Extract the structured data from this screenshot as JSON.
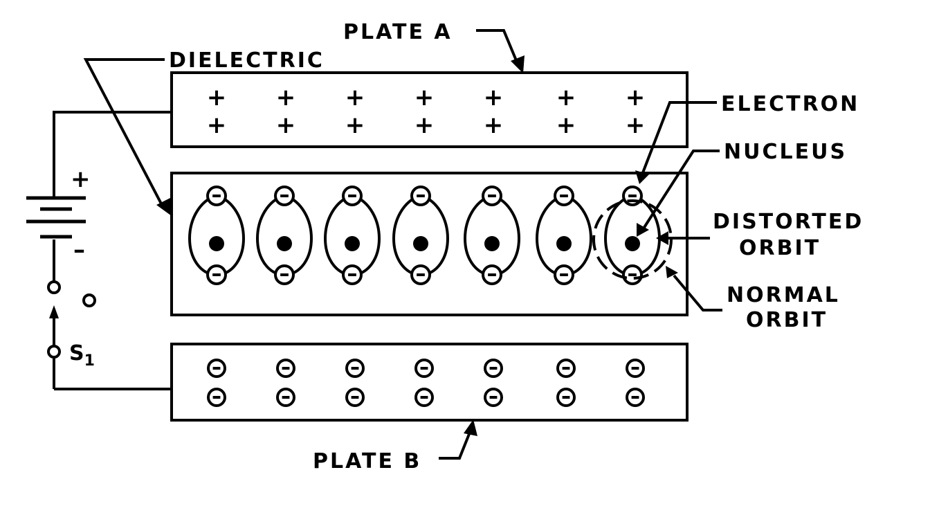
{
  "labels": {
    "plate_a": "PLATE A",
    "plate_b": "PLATE B",
    "dielectric": "DIELECTRIC",
    "electron": "ELECTRON",
    "nucleus": "NUCLEUS",
    "distorted_line1": "DISTORTED",
    "distorted_line2": "ORBIT",
    "normal_line1": "NORMAL",
    "normal_line2": "ORBIT",
    "switch": "S",
    "switch_subscript": "1",
    "battery_plus": "+",
    "battery_minus": "–"
  },
  "plate_a_charge_symbol": "+",
  "plate_b_charge_symbol": "–",
  "atoms_count": 7,
  "charge_columns": 7
}
